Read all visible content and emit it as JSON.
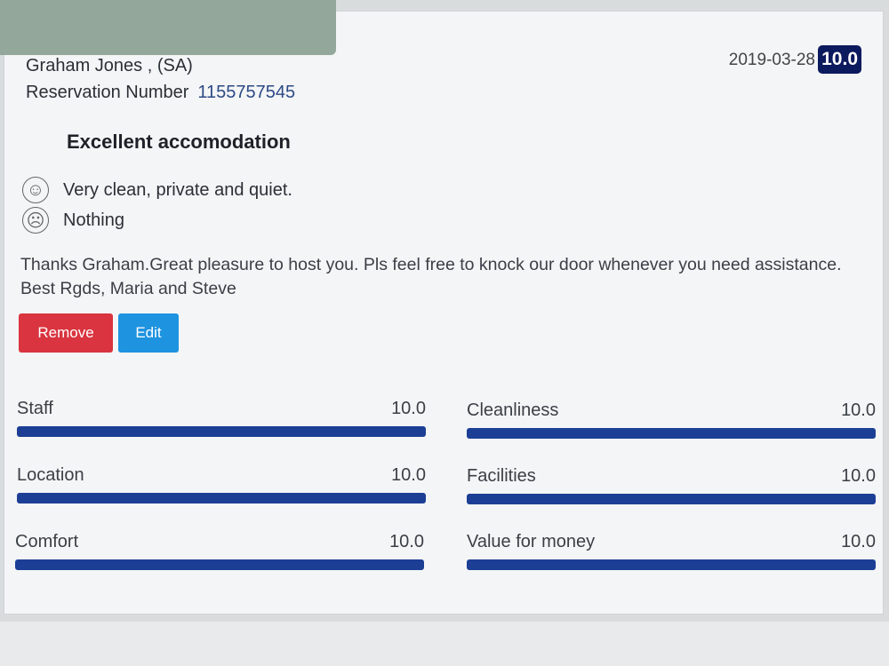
{
  "review": {
    "guest": "Graham Jones , (SA)",
    "reservation_label": "Reservation Number",
    "reservation_number": "1155757545",
    "date": "2019-03-28",
    "score": "10.0",
    "title": "Excellent accomodation",
    "positive": "Very clean, private and quiet.",
    "negative": "Nothing",
    "positive_icon": "smiley-face-icon",
    "negative_icon": "sad-face-icon",
    "reply": "Thanks Graham.Great pleasure to host you. Pls feel free to knock our door whenever you need assistance. Best Rgds, Maria and Steve"
  },
  "actions": {
    "remove": "Remove",
    "edit": "Edit"
  },
  "metrics": [
    {
      "label": "Staff",
      "value": "10.0",
      "fraction": 1.0
    },
    {
      "label": "Cleanliness",
      "value": "10.0",
      "fraction": 1.0
    },
    {
      "label": "Location",
      "value": "10.0",
      "fraction": 1.0
    },
    {
      "label": "Facilities",
      "value": "10.0",
      "fraction": 1.0
    },
    {
      "label": "Comfort",
      "value": "10.0",
      "fraction": 1.0
    },
    {
      "label": "Value for money",
      "value": "10.0",
      "fraction": 1.0
    }
  ],
  "colors": {
    "score_badge": "#0c1a5e",
    "bar": "#1c3f95",
    "remove": "#d9343f",
    "edit": "#1e93e0"
  }
}
